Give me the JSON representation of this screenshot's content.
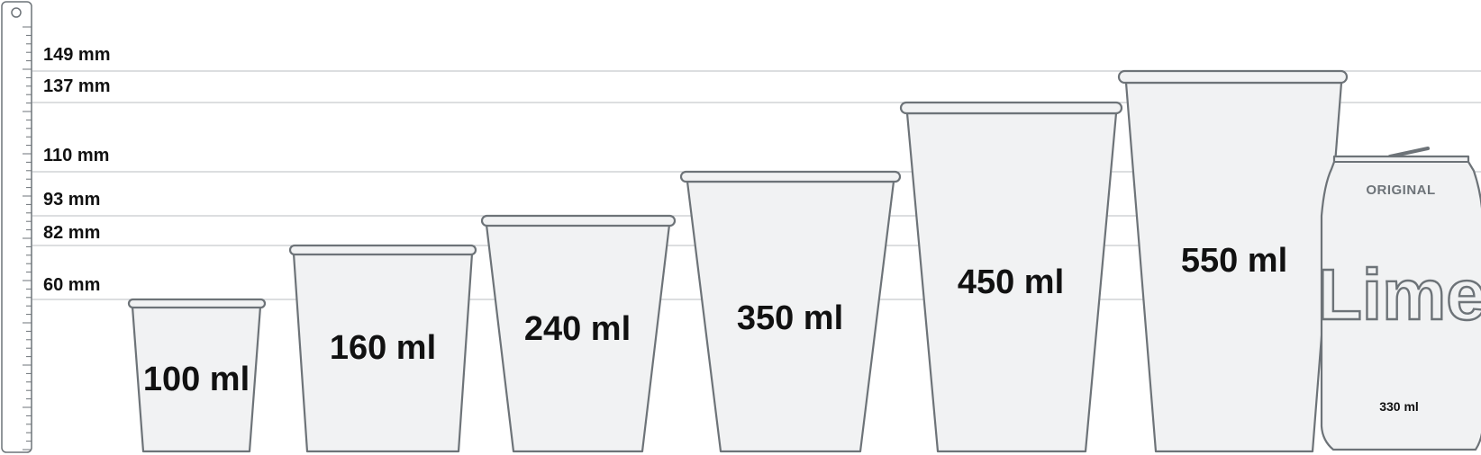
{
  "ruler": {
    "marks": [
      {
        "label": "149 mm",
        "height_mm": 149
      },
      {
        "label": "137 mm",
        "height_mm": 137
      },
      {
        "label": "110 mm",
        "height_mm": 110
      },
      {
        "label": "93 mm",
        "height_mm": 93
      },
      {
        "label": "82 mm",
        "height_mm": 82
      },
      {
        "label": "60 mm",
        "height_mm": 60
      }
    ]
  },
  "cups": [
    {
      "label": "100 ml",
      "height_mm": 60
    },
    {
      "label": "160 ml",
      "height_mm": 82
    },
    {
      "label": "240 ml",
      "height_mm": 93
    },
    {
      "label": "350 ml",
      "height_mm": 110
    },
    {
      "label": "450 ml",
      "height_mm": 137
    },
    {
      "label": "550 ml",
      "height_mm": 149
    }
  ],
  "can": {
    "brand": "ORIGINAL",
    "logo": "Lime",
    "volume": "330 ml"
  },
  "colors": {
    "outline": "#6d7378",
    "fill": "#f1f2f3",
    "guide": "#b9bdc1",
    "text": "#111111"
  }
}
